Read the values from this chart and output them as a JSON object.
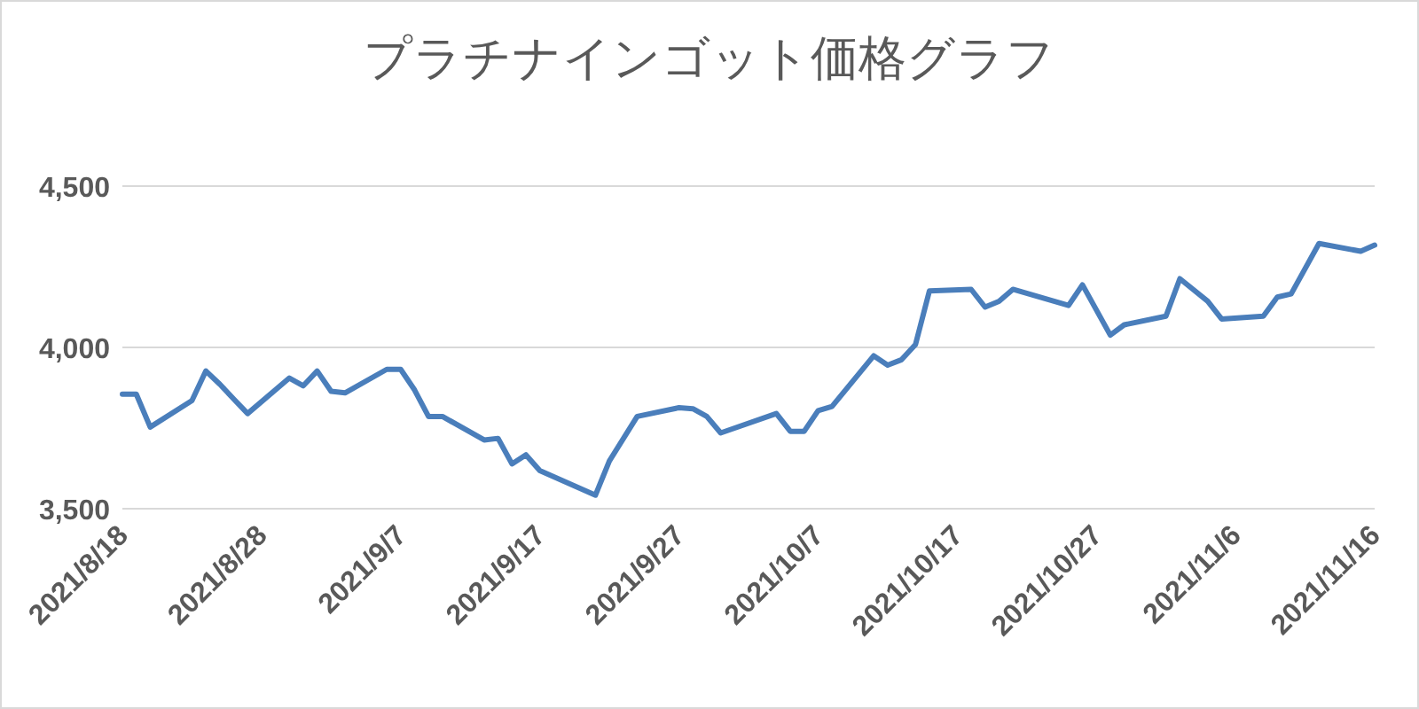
{
  "chart_data": {
    "type": "line",
    "title": "プラチナインゴット価格グラフ",
    "x": [
      "2021-08-18",
      "2021-08-19",
      "2021-08-20",
      "2021-08-23",
      "2021-08-24",
      "2021-08-25",
      "2021-08-26",
      "2021-08-27",
      "2021-08-30",
      "2021-08-31",
      "2021-09-01",
      "2021-09-02",
      "2021-09-03",
      "2021-09-06",
      "2021-09-07",
      "2021-09-08",
      "2021-09-09",
      "2021-09-10",
      "2021-09-13",
      "2021-09-14",
      "2021-09-15",
      "2021-09-16",
      "2021-09-17",
      "2021-09-21",
      "2021-09-22",
      "2021-09-24",
      "2021-09-27",
      "2021-09-28",
      "2021-09-29",
      "2021-09-30",
      "2021-10-04",
      "2021-10-05",
      "2021-10-06",
      "2021-10-07",
      "2021-10-08",
      "2021-10-11",
      "2021-10-12",
      "2021-10-13",
      "2021-10-14",
      "2021-10-15",
      "2021-10-18",
      "2021-10-19",
      "2021-10-20",
      "2021-10-21",
      "2021-10-25",
      "2021-10-26",
      "2021-10-28",
      "2021-10-29",
      "2021-11-01",
      "2021-11-02",
      "2021-11-04",
      "2021-11-05",
      "2021-11-08",
      "2021-11-09",
      "2021-11-10",
      "2021-11-12",
      "2021-11-15",
      "2021-11-16"
    ],
    "series": [
      {
        "color": "#4a7ebb",
        "values": [
          3855,
          3855,
          3753,
          3835,
          3927,
          3886,
          3840,
          3795,
          3905,
          3881,
          3927,
          3864,
          3859,
          3932,
          3932,
          3868,
          3786,
          3786,
          3713,
          3718,
          3639,
          3667,
          3618,
          3542,
          3648,
          3786,
          3813,
          3810,
          3786,
          3735,
          3795,
          3740,
          3740,
          3804,
          3817,
          3974,
          3945,
          3962,
          4009,
          4175,
          4180,
          4125,
          4143,
          4180,
          4130,
          4194,
          4038,
          4070,
          4097,
          4213,
          4143,
          4088,
          4097,
          4156,
          4166,
          4322,
          4298,
          4317
        ]
      }
    ],
    "xlim": [
      "2021-08-18",
      "2021-11-16"
    ],
    "xticks": [
      {
        "value": "2021-08-18",
        "label": "2021/8/18"
      },
      {
        "value": "2021-08-28",
        "label": "2021/8/28"
      },
      {
        "value": "2021-09-07",
        "label": "2021/9/7"
      },
      {
        "value": "2021-09-17",
        "label": "2021/9/17"
      },
      {
        "value": "2021-09-27",
        "label": "2021/9/27"
      },
      {
        "value": "2021-10-07",
        "label": "2021/10/7"
      },
      {
        "value": "2021-10-17",
        "label": "2021/10/17"
      },
      {
        "value": "2021-10-27",
        "label": "2021/10/27"
      },
      {
        "value": "2021-11-06",
        "label": "2021/11/6"
      },
      {
        "value": "2021-11-16",
        "label": "2021/11/16"
      }
    ],
    "ylim": [
      3500,
      4500
    ],
    "yticks": [
      {
        "value": 3500,
        "label": "3,500"
      },
      {
        "value": 4000,
        "label": "4,000"
      },
      {
        "value": 4500,
        "label": "4,500"
      }
    ],
    "grid": "y",
    "marker": "none",
    "line_style": "solid"
  }
}
